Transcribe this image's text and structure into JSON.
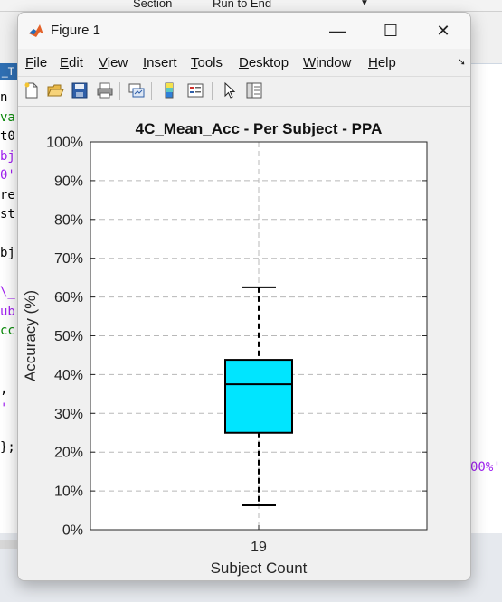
{
  "background": {
    "toolbar_items": [
      "Section",
      "Run to End"
    ],
    "tab_label": "_T",
    "code_lines": [
      {
        "text": "n",
        "color": "#000000"
      },
      {
        "text": "va",
        "color": "#0a8a0a"
      },
      {
        "text": "t0",
        "color": "#000000"
      },
      {
        "text": "bj",
        "color": "#a020f0"
      },
      {
        "text": "0'",
        "color": "#a020f0"
      },
      {
        "text": "re",
        "color": "#000000"
      },
      {
        "text": "st",
        "color": "#000000"
      },
      {
        "text": "",
        "color": "#000000"
      },
      {
        "text": "bj",
        "color": "#000000"
      },
      {
        "text": "",
        "color": "#000000"
      },
      {
        "text": "\\_",
        "color": "#a020f0"
      },
      {
        "text": "ub",
        "color": "#a020f0"
      },
      {
        "text": "cc",
        "color": "#0a8a0a"
      },
      {
        "text": "",
        "color": "#000000"
      },
      {
        "text": "",
        "color": "#000000"
      },
      {
        "text": ",",
        "color": "#000000"
      },
      {
        "text": "'",
        "color": "#a020f0"
      },
      {
        "text": "",
        "color": "#000000"
      },
      {
        "text": "};",
        "color": "#000000"
      }
    ],
    "code_right": "00%'"
  },
  "window": {
    "title": "Figure 1",
    "minimize": "—",
    "maximize": "☐",
    "close": "✕"
  },
  "menu": [
    {
      "key": "F",
      "rest": "ile"
    },
    {
      "key": "E",
      "rest": "dit"
    },
    {
      "key": "V",
      "rest": "iew"
    },
    {
      "key": "I",
      "rest": "nsert"
    },
    {
      "key": "T",
      "rest": "ools"
    },
    {
      "key": "D",
      "rest": "esktop"
    },
    {
      "key": "W",
      "rest": "indow"
    },
    {
      "key": "H",
      "rest": "elp"
    }
  ],
  "toolbar_icons": [
    "new-figure-icon",
    "open-file-icon",
    "save-icon",
    "print-icon",
    "link-plot-icon",
    "colorbar-icon",
    "legend-icon",
    "pointer-icon",
    "property-inspector-icon"
  ],
  "chart_data": {
    "type": "box",
    "title": "4C_Mean_Acc - Per Subject - PPA",
    "xlabel": "Subject Count",
    "ylabel": "Accuracy (%)",
    "categories": [
      "19"
    ],
    "ylim": [
      0,
      100
    ],
    "yticks": [
      0,
      10,
      20,
      30,
      40,
      50,
      60,
      70,
      80,
      90,
      100
    ],
    "ytick_labels": [
      "0%",
      "10%",
      "20%",
      "30%",
      "40%",
      "50%",
      "60%",
      "70%",
      "80%",
      "90%",
      "100%"
    ],
    "grid": true,
    "box_color": "#00e5ff",
    "boxes": [
      {
        "category": "19",
        "min": 6.3,
        "q1": 25.0,
        "median": 37.5,
        "q3": 43.8,
        "max": 62.5
      }
    ]
  }
}
